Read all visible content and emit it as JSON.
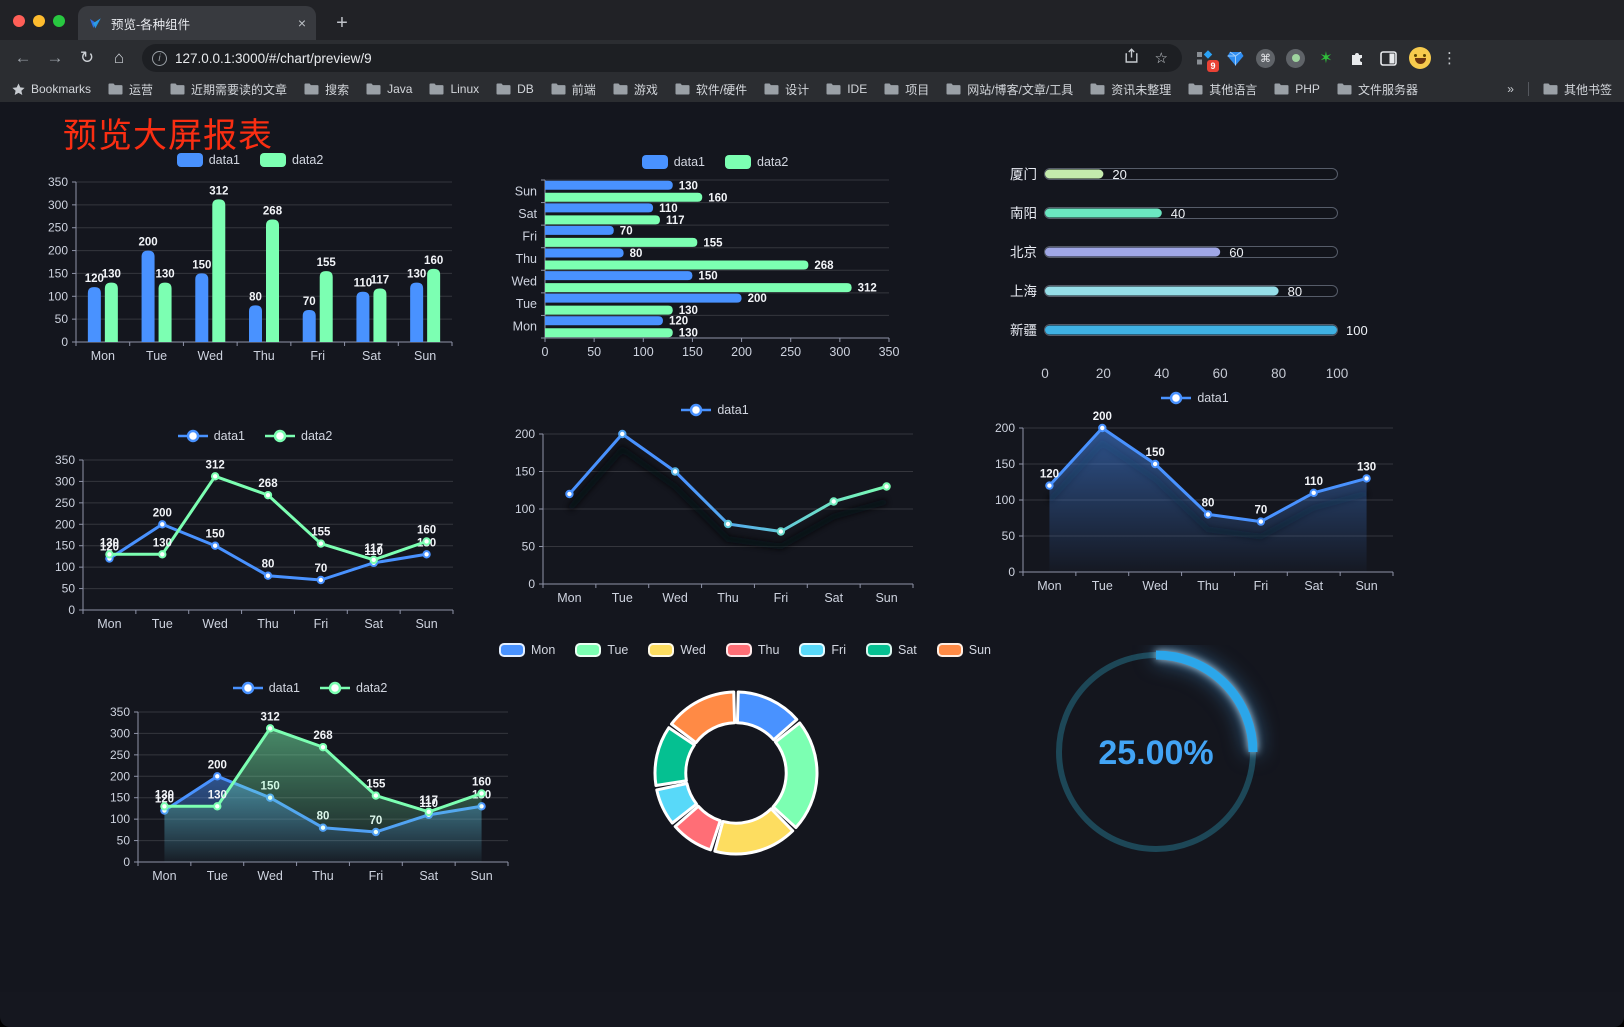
{
  "browser": {
    "tab_title": "预览-各种组件",
    "url": "127.0.0.1:3000/#/chart/preview/9",
    "new_tab_label": "+",
    "tab_close_label": "×",
    "extension_badge": "9",
    "bookmarks_root_label": "Bookmarks",
    "bookmarks": [
      "运营",
      "近期需要读的文章",
      "搜索",
      "Java",
      "Linux",
      "DB",
      "前端",
      "游戏",
      "软件/硬件",
      "设计",
      "IDE",
      "项目",
      "网站/博客/文章/工具",
      "资讯未整理",
      "其他语言",
      "PHP",
      "文件服务器"
    ],
    "bookmarks_overflow": "»",
    "other_bookmarks_label": "其他书签"
  },
  "page": {
    "title": "预览大屏报表",
    "title_color": "#fa2e12",
    "background": "#14161e"
  },
  "palette": {
    "blue": "#4992ff",
    "green": "#7cffb2",
    "axis_label": "#ced3df",
    "grid_line": "rgba(255,255,255,0.14)"
  },
  "chart_data": [
    {
      "id": "bar-vertical",
      "type": "bar",
      "categories": [
        "Mon",
        "Tue",
        "Wed",
        "Thu",
        "Fri",
        "Sat",
        "Sun"
      ],
      "series": [
        {
          "name": "data1",
          "color": "#4992ff",
          "values": [
            120,
            200,
            150,
            80,
            70,
            110,
            130
          ]
        },
        {
          "name": "data2",
          "color": "#7cffb2",
          "values": [
            130,
            130,
            312,
            268,
            155,
            117,
            160
          ]
        }
      ],
      "ylim": [
        0,
        350
      ],
      "ytick_step": 50,
      "legend_position": "top",
      "grid": true
    },
    {
      "id": "bar-horizontal",
      "type": "bar-horizontal",
      "categories": [
        "Mon",
        "Tue",
        "Wed",
        "Thu",
        "Fri",
        "Sat",
        "Sun"
      ],
      "displayed_top_to_bottom": [
        "Sun",
        "Sat",
        "Fri",
        "Thu",
        "Wed",
        "Tue",
        "Mon"
      ],
      "series": [
        {
          "name": "data1",
          "color": "#4992ff",
          "values": [
            120,
            200,
            150,
            80,
            70,
            110,
            130
          ]
        },
        {
          "name": "data2",
          "color": "#7cffb2",
          "values": [
            130,
            130,
            312,
            268,
            155,
            117,
            160
          ]
        }
      ],
      "xlim": [
        0,
        350
      ],
      "xtick_step": 50,
      "legend_position": "top"
    },
    {
      "id": "capsule",
      "type": "capsule",
      "items": [
        {
          "label": "厦门",
          "value": 20,
          "color": "#c4ebad"
        },
        {
          "label": "南阳",
          "value": 40,
          "color": "#6be6c1"
        },
        {
          "label": "北京",
          "value": 60,
          "color": "#a0a7e6"
        },
        {
          "label": "上海",
          "value": 80,
          "color": "#96dee8"
        },
        {
          "label": "新疆",
          "value": 100,
          "color": "#3fb1e3"
        }
      ],
      "xticks": [
        0,
        20,
        40,
        60,
        80,
        100
      ],
      "max": 100
    },
    {
      "id": "line-basic",
      "type": "line",
      "categories": [
        "Mon",
        "Tue",
        "Wed",
        "Thu",
        "Fri",
        "Sat",
        "Sun"
      ],
      "series": [
        {
          "name": "data1",
          "color": "#4992ff",
          "values": [
            120,
            200,
            150,
            80,
            70,
            110,
            130
          ],
          "labels": true
        },
        {
          "name": "data2",
          "color": "#7cffb2",
          "values": [
            130,
            130,
            312,
            268,
            155,
            117,
            160
          ],
          "labels": true
        }
      ],
      "ylim": [
        0,
        350
      ],
      "ytick_step": 50,
      "legend_position": "top"
    },
    {
      "id": "line-gradient",
      "type": "line",
      "categories": [
        "Mon",
        "Tue",
        "Wed",
        "Thu",
        "Fri",
        "Sat",
        "Sun"
      ],
      "series": [
        {
          "name": "data1",
          "gradient": [
            "#4992ff",
            "#7cffb2"
          ],
          "values": [
            120,
            200,
            150,
            80,
            70,
            110,
            130
          ],
          "labels": false,
          "shadow": true
        }
      ],
      "ylim": [
        0,
        200
      ],
      "ytick_step": 50,
      "legend_position": "top"
    },
    {
      "id": "line-area-single",
      "type": "line",
      "categories": [
        "Mon",
        "Tue",
        "Wed",
        "Thu",
        "Fri",
        "Sat",
        "Sun"
      ],
      "series": [
        {
          "name": "data1",
          "color": "#4992ff",
          "values": [
            120,
            200,
            150,
            80,
            70,
            110,
            130
          ],
          "labels": true,
          "area": true,
          "shadow": true
        }
      ],
      "ylim": [
        0,
        200
      ],
      "ytick_step": 50,
      "legend_position": "top"
    },
    {
      "id": "line-area-double",
      "type": "line",
      "categories": [
        "Mon",
        "Tue",
        "Wed",
        "Thu",
        "Fri",
        "Sat",
        "Sun"
      ],
      "series": [
        {
          "name": "data1",
          "color": "#4992ff",
          "values": [
            120,
            200,
            150,
            80,
            70,
            110,
            130
          ],
          "labels": true,
          "area": true
        },
        {
          "name": "data2",
          "color": "#7cffb2",
          "values": [
            130,
            130,
            312,
            268,
            155,
            117,
            160
          ],
          "labels": true,
          "area": true
        }
      ],
      "ylim": [
        0,
        350
      ],
      "ytick_step": 50,
      "legend_position": "top"
    },
    {
      "id": "donut",
      "type": "pie",
      "categories": [
        "Mon",
        "Tue",
        "Wed",
        "Thu",
        "Fri",
        "Sat",
        "Sun"
      ],
      "values": [
        120,
        200,
        150,
        80,
        70,
        110,
        130
      ],
      "colors": [
        "#4992ff",
        "#7cffb2",
        "#fddd60",
        "#ff6e76",
        "#58d9f9",
        "#05c091",
        "#ff8a45"
      ],
      "inner_radius_ratio": 0.62,
      "legend_position": "top",
      "slice_border_color": "#ffffff"
    },
    {
      "id": "gauge",
      "type": "gauge",
      "value": 25,
      "min": 0,
      "max": 100,
      "label": "25.00%",
      "progress_color": "#2ba6ea",
      "track_color": "#1d4757",
      "text_color": "#42a4f5"
    }
  ]
}
